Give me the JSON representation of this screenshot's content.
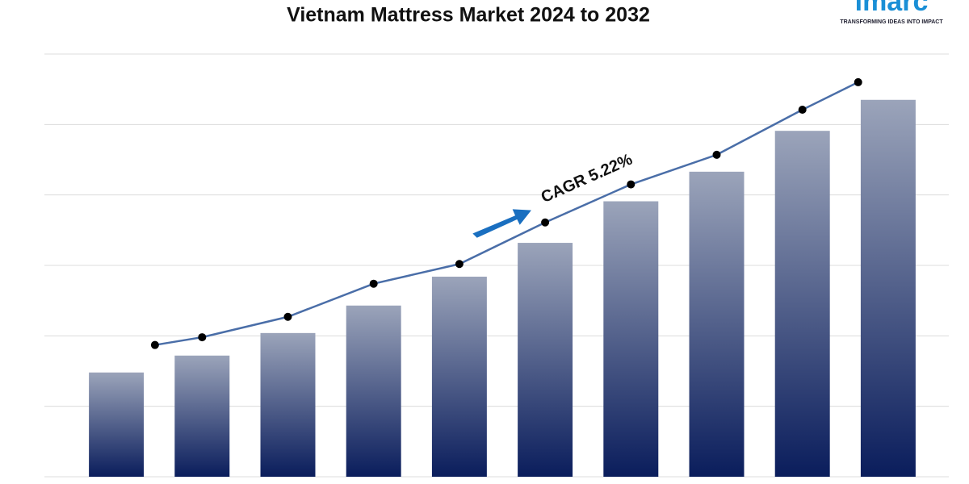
{
  "chart_data": {
    "type": "bar",
    "title": "Vietnam Mattress Market 2024 to 2032",
    "annotation": "CAGR 5.22%",
    "categories": [
      null,
      null,
      null,
      null,
      null,
      null,
      null,
      null,
      null,
      null
    ],
    "values": [
      1.48,
      1.72,
      2.04,
      2.43,
      2.84,
      3.32,
      3.91,
      4.33,
      4.91,
      5.35
    ],
    "color": [
      "#9ba4ba",
      "#0a1d5c"
    ],
    "line": {
      "type": "line",
      "color": "#4a6ea8",
      "marker_color": "#000000",
      "x": [
        0.45,
        1,
        2,
        3,
        4,
        5,
        6,
        7,
        8,
        8.65
      ],
      "values": [
        1.87,
        1.98,
        2.27,
        2.74,
        3.02,
        3.61,
        4.15,
        4.57,
        5.21,
        5.6
      ]
    },
    "xlim": [
      -0.5,
      9.5
    ],
    "ylim": [
      0,
      6
    ],
    "yticks": [
      0,
      1,
      2,
      3,
      4,
      5,
      6
    ],
    "grid": true
  },
  "logo": {
    "name": "imarc",
    "tagline": "TRANSFORMING IDEAS INTO IMPACT"
  }
}
